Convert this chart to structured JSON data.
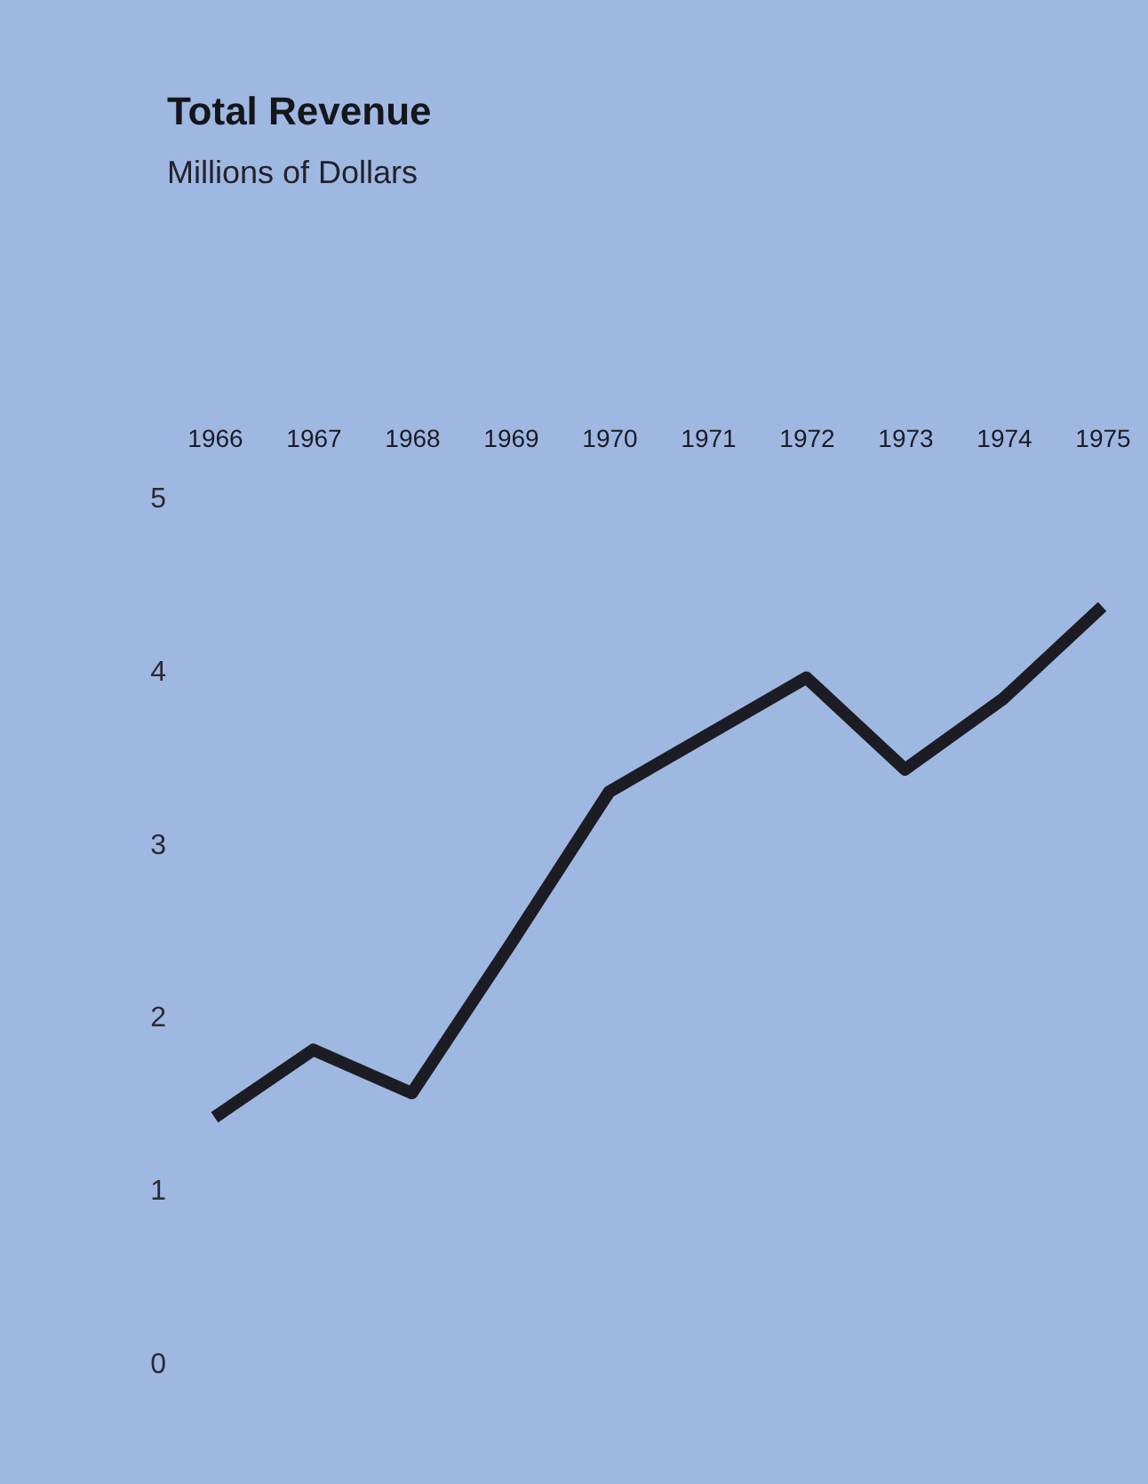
{
  "chart_data": {
    "type": "line",
    "title": "Total Revenue",
    "subtitle": "Millions of Dollars",
    "categories": [
      "1966",
      "1967",
      "1968",
      "1969",
      "1970",
      "1971",
      "1972",
      "1973",
      "1974",
      "1975"
    ],
    "series": [
      {
        "color": "#1c1c24",
        "values": [
          1.42,
          1.81,
          1.56,
          2.42,
          3.3,
          3.63,
          3.96,
          3.43,
          3.84,
          4.37
        ]
      }
    ],
    "ylim": [
      0,
      5
    ],
    "yticks": [
      0,
      1,
      2,
      3,
      4,
      5
    ],
    "grid": false,
    "marker": "none",
    "line_style": "solid"
  }
}
